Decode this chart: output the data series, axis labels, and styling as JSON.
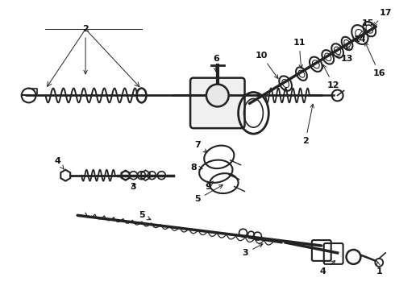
{
  "bg_color": "#ffffff",
  "fig_width": 4.9,
  "fig_height": 3.6,
  "dpi": 100,
  "text_fontsize": 8,
  "text_color": "#111111",
  "line_color": "#222222",
  "line_lw": 0.7
}
